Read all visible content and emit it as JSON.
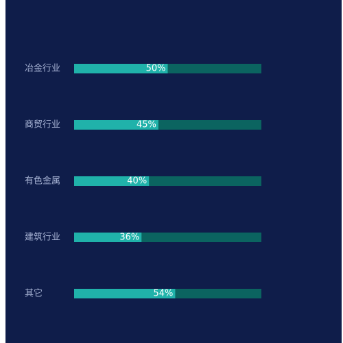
{
  "colors": {
    "background": "#0f1d4a",
    "track": "#0b6460",
    "fill": "#20b2aa",
    "category_text": "#a9b5d6",
    "value_text": "#ffffff"
  },
  "chart_data": {
    "type": "bar",
    "orientation": "horizontal",
    "categories": [
      "冶金行业",
      "商贸行业",
      "有色金属",
      "建筑行业",
      "其它"
    ],
    "values": [
      50,
      45,
      40,
      36,
      54
    ],
    "value_labels": [
      "50%",
      "45%",
      "40%",
      "36%",
      "54%"
    ],
    "xlim": [
      0,
      100
    ],
    "grid": false,
    "legend": "none"
  }
}
